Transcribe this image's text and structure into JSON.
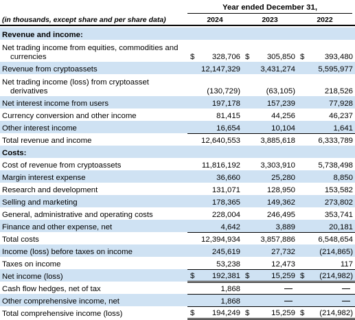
{
  "header": {
    "period": "Year ended December 31,",
    "units_label": "(in thousands, except share and per share data)",
    "years": [
      "2024",
      "2023",
      "2022"
    ]
  },
  "rows": [
    {
      "label": "Revenue and income:",
      "section": true,
      "shade": true
    },
    {
      "label": "Net trading income from equities, commodities and",
      "label2": "currencies",
      "tall": true,
      "dollar": true,
      "values": [
        "328,706",
        "305,850",
        "393,480"
      ]
    },
    {
      "label": "Revenue from cryptoassets",
      "shade": true,
      "values": [
        "12,147,329",
        "3,431,274",
        "5,595,977"
      ]
    },
    {
      "label": "Net trading income (loss) from cryptoasset",
      "label2": "derivatives",
      "tall": true,
      "values": [
        "(130,729)",
        "(63,105)",
        "218,526"
      ]
    },
    {
      "label": "Net interest income from users",
      "shade": true,
      "values": [
        "197,178",
        "157,239",
        "77,928"
      ]
    },
    {
      "label": "Currency conversion and other income",
      "values": [
        "81,415",
        "44,256",
        "46,237"
      ]
    },
    {
      "label": "Other interest income",
      "shade": true,
      "values": [
        "16,654",
        "10,104",
        "1,641"
      ]
    },
    {
      "label": "Total revenue and income",
      "values": [
        "12,640,553",
        "3,885,618",
        "6,333,789"
      ],
      "topline": true
    },
    {
      "label": "Costs:",
      "section": true,
      "shade": true
    },
    {
      "label": "Cost of revenue from cryptoassets",
      "values": [
        "11,816,192",
        "3,303,910",
        "5,738,498"
      ]
    },
    {
      "label": "Margin interest expense",
      "shade": true,
      "values": [
        "36,660",
        "25,280",
        "8,850"
      ]
    },
    {
      "label": "Research and development",
      "values": [
        "131,071",
        "128,950",
        "153,582"
      ]
    },
    {
      "label": "Selling and marketing",
      "shade": true,
      "values": [
        "178,365",
        "149,362",
        "273,802"
      ]
    },
    {
      "label": "General, administrative and operating costs",
      "values": [
        "228,004",
        "246,495",
        "353,741"
      ]
    },
    {
      "label": "Finance and other expense, net",
      "shade": true,
      "values": [
        "4,642",
        "3,889",
        "20,181"
      ]
    },
    {
      "label": "Total costs",
      "values": [
        "12,394,934",
        "3,857,886",
        "6,548,654"
      ],
      "topline": true
    },
    {
      "label": "Income (loss) before taxes on income",
      "shade": true,
      "values": [
        "245,619",
        "27,732",
        "(214,865)"
      ]
    },
    {
      "label": "Taxes on income",
      "values": [
        "53,238",
        "12,473",
        "117"
      ]
    },
    {
      "label": "Net income (loss)",
      "shade": true,
      "dollar": true,
      "values": [
        "192,381",
        "15,259",
        "(214,982)"
      ],
      "topline": true,
      "double": true
    },
    {
      "label": "Cash flow hedges, net of tax",
      "values": [
        "1,868",
        "",
        ""
      ],
      "dash": [
        false,
        true,
        true
      ]
    },
    {
      "label": "Other comprehensive income, net",
      "shade": true,
      "values": [
        "1,868",
        "",
        ""
      ],
      "dash": [
        false,
        true,
        true
      ],
      "topline": true
    },
    {
      "label": "Total comprehensive income (loss)",
      "dollar": true,
      "values": [
        "194,249",
        "15,259",
        "(214,982)"
      ],
      "topline": true,
      "double": true
    }
  ],
  "currency_symbol": "$",
  "colors": {
    "shade": "#cfe2f3",
    "text": "#000000"
  }
}
